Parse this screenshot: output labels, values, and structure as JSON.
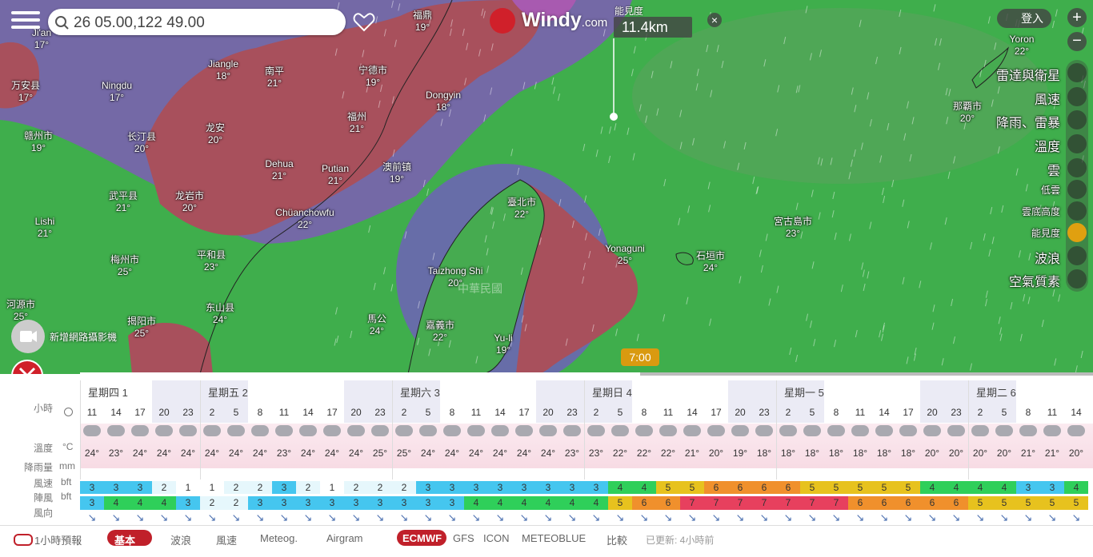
{
  "search": {
    "query": "26 05.00,122 49.00"
  },
  "logo": {
    "name": "Windy",
    "suffix": ".com"
  },
  "popup": {
    "label": "能見度",
    "value": "11.4km"
  },
  "account": {
    "login": "登入"
  },
  "layers": [
    "雷達與衛星",
    "風速",
    "降雨、雷暴",
    "溫度",
    "雲",
    "低雲",
    "雲底高度",
    "能見度",
    "波浪",
    "空氣質素"
  ],
  "map": {
    "labels": [
      {
        "name": "Ji'an",
        "temp": "17°"
      },
      {
        "name": "福鼎",
        "temp": "19°"
      },
      {
        "name": "Jiangle",
        "temp": "18°"
      },
      {
        "name": "南平",
        "temp": "21°"
      },
      {
        "name": "宁德市",
        "temp": "19°"
      },
      {
        "name": "万安县",
        "temp": "17°"
      },
      {
        "name": "Ningdu",
        "temp": "17°"
      },
      {
        "name": "Dongyin",
        "temp": "18°"
      },
      {
        "name": "福州",
        "temp": "21°"
      },
      {
        "name": "赣州市",
        "temp": "19°"
      },
      {
        "name": "龙安",
        "temp": "20°"
      },
      {
        "name": "长汀县",
        "temp": "20°"
      },
      {
        "name": "Dehua",
        "temp": "21°"
      },
      {
        "name": "Putian",
        "temp": "21°"
      },
      {
        "name": "澳前镇",
        "temp": "19°"
      },
      {
        "name": "武平县",
        "temp": "21°"
      },
      {
        "name": "龙岩市",
        "temp": "20°"
      },
      {
        "name": "臺北市",
        "temp": "22°"
      },
      {
        "name": "Lishi",
        "temp": "21°"
      },
      {
        "name": "Chüanchowfu",
        "temp": "22°"
      },
      {
        "name": "宮古島市",
        "temp": "23°"
      },
      {
        "name": "Yonaguni",
        "temp": "25°"
      },
      {
        "name": "石垣市",
        "temp": "24°"
      },
      {
        "name": "平和县",
        "temp": "23°"
      },
      {
        "name": "梅州市",
        "temp": "25°"
      },
      {
        "name": "Taizhong Shi",
        "temp": "20°"
      },
      {
        "name": "河源市",
        "temp": "25°"
      },
      {
        "name": "东山县",
        "temp": "24°"
      },
      {
        "name": "揭阳市",
        "temp": "25°"
      },
      {
        "name": "馬公",
        "temp": "24°"
      },
      {
        "name": "嘉義市",
        "temp": "22°"
      },
      {
        "name": "Yu-li",
        "temp": "19°"
      },
      {
        "name": "那覇市",
        "temp": "20°"
      },
      {
        "name": "Yoron",
        "temp": "22°"
      }
    ],
    "country": "中華民國"
  },
  "webcam": "新增網路攝影機",
  "timeline": {
    "time": "7:00"
  },
  "forecast": {
    "days": [
      "星期四 1",
      "星期五 2",
      "星期六 3",
      "星期日 4",
      "星期一 5",
      "星期二 6"
    ],
    "day_columns": [
      5,
      8,
      8,
      8,
      8,
      5
    ],
    "row_labels": {
      "hours": "小時",
      "temp": "溫度",
      "temp_unit": "°C",
      "rain": "降雨量",
      "rain_unit": "mm",
      "wind": "風速",
      "wind_unit": "bft",
      "gust": "陣風",
      "gust_unit": "bft",
      "direction": "風向"
    },
    "hours": [
      11,
      14,
      17,
      20,
      23,
      2,
      5,
      8,
      11,
      14,
      17,
      20,
      23,
      2,
      5,
      8,
      11,
      14,
      17,
      20,
      23,
      2,
      5,
      8,
      11,
      14,
      17,
      20,
      23,
      2,
      5,
      8,
      11,
      14,
      17,
      20,
      23,
      2,
      5,
      8,
      11,
      14
    ],
    "temps": [
      "24°",
      "23°",
      "24°",
      "24°",
      "24°",
      "24°",
      "24°",
      "24°",
      "23°",
      "24°",
      "24°",
      "24°",
      "25°",
      "25°",
      "24°",
      "24°",
      "24°",
      "24°",
      "24°",
      "24°",
      "23°",
      "23°",
      "22°",
      "22°",
      "22°",
      "21°",
      "20°",
      "19°",
      "18°",
      "18°",
      "18°",
      "18°",
      "18°",
      "18°",
      "18°",
      "20°",
      "20°",
      "20°",
      "20°",
      "21°",
      "21°",
      "20°"
    ],
    "wind": [
      3,
      3,
      3,
      2,
      1,
      1,
      2,
      2,
      3,
      2,
      1,
      2,
      2,
      2,
      3,
      3,
      3,
      3,
      3,
      3,
      3,
      3,
      4,
      4,
      5,
      5,
      6,
      6,
      6,
      6,
      5,
      5,
      5,
      5,
      5,
      4,
      4,
      4,
      4,
      3,
      3,
      4
    ],
    "gust": [
      3,
      4,
      4,
      4,
      3,
      2,
      2,
      3,
      3,
      3,
      3,
      3,
      3,
      3,
      3,
      3,
      4,
      4,
      4,
      4,
      4,
      4,
      5,
      6,
      6,
      7,
      7,
      7,
      7,
      7,
      7,
      7,
      6,
      6,
      6,
      6,
      6,
      5,
      5,
      5,
      5,
      5
    ]
  },
  "bottom_bar": {
    "hourly": "1小時預報",
    "tabs": [
      "基本",
      "波浪",
      "風速",
      "Meteog.",
      "Airgram"
    ],
    "models": [
      "ECMWF",
      "GFS",
      "ICON",
      "METEOBLUE"
    ],
    "compare": "比較",
    "updated": "已更新: 4小時前"
  }
}
